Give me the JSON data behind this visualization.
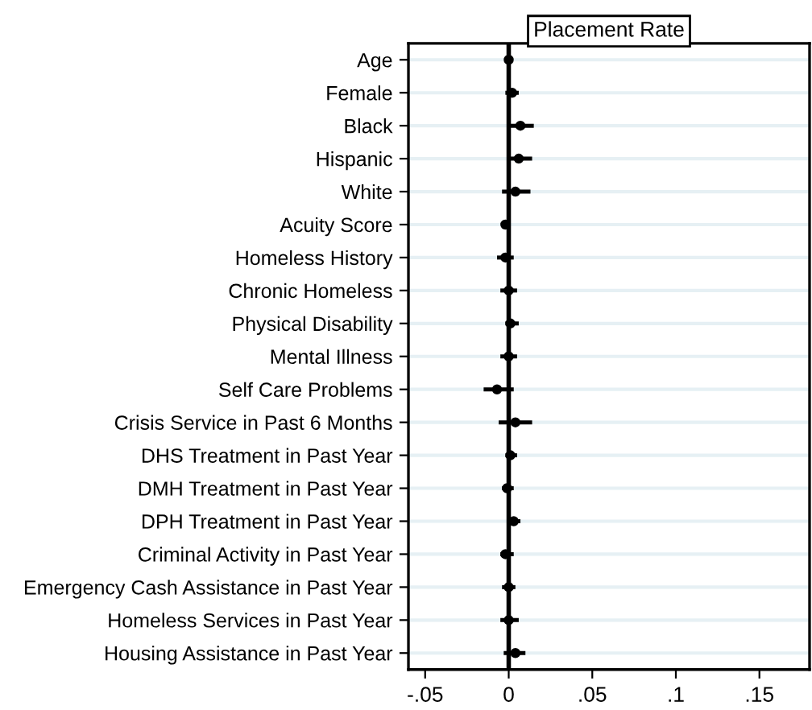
{
  "chart_data": {
    "type": "scatter",
    "orientation": "horizontal",
    "title": "Placement Rate",
    "categories": [
      "Age",
      "Female",
      "Black",
      "Hispanic",
      "White",
      "Acuity Score",
      "Homeless History",
      "Chronic Homeless",
      "Physical Disability",
      "Mental Illness",
      "Self Care Problems",
      "Crisis Service in Past 6 Months",
      "DHS Treatment in Past Year",
      "DMH Treatment in Past Year",
      "DPH Treatment in Past Year",
      "Criminal Activity in Past Year",
      "Emergency Cash Assistance in Past Year",
      "Homeless Services in Past Year",
      "Housing Assistance in Past Year"
    ],
    "values": [
      0.0,
      0.002,
      0.007,
      0.006,
      0.004,
      -0.002,
      -0.002,
      0.0,
      0.001,
      0.0,
      -0.007,
      0.004,
      0.001,
      -0.001,
      0.003,
      -0.002,
      0.0,
      0.0,
      0.004
    ],
    "errors": [
      null,
      [
        -0.002,
        0.006
      ],
      [
        0.0,
        0.015
      ],
      [
        -0.001,
        0.014
      ],
      [
        -0.004,
        0.013
      ],
      null,
      [
        -0.007,
        0.003
      ],
      [
        -0.005,
        0.005
      ],
      [
        -0.002,
        0.006
      ],
      [
        -0.005,
        0.005
      ],
      [
        -0.015,
        0.003
      ],
      [
        -0.006,
        0.014
      ],
      [
        -0.002,
        0.005
      ],
      [
        -0.004,
        0.003
      ],
      [
        0.0,
        0.007
      ],
      [
        -0.005,
        0.003
      ],
      [
        -0.004,
        0.004
      ],
      [
        -0.005,
        0.006
      ],
      [
        -0.003,
        0.01
      ]
    ],
    "color": "#000000",
    "marker": "circle",
    "xlim": [
      -0.06,
      0.18
    ],
    "xticks": [
      {
        "value": -0.05,
        "label": "-.05"
      },
      {
        "value": 0,
        "label": "0"
      },
      {
        "value": 0.05,
        "label": ".05"
      },
      {
        "value": 0.1,
        "label": ".1"
      },
      {
        "value": 0.15,
        "label": ".15"
      }
    ],
    "ref_lines": [
      {
        "axis": "x",
        "value": 0,
        "color": "#000000"
      }
    ],
    "grid": "y"
  }
}
